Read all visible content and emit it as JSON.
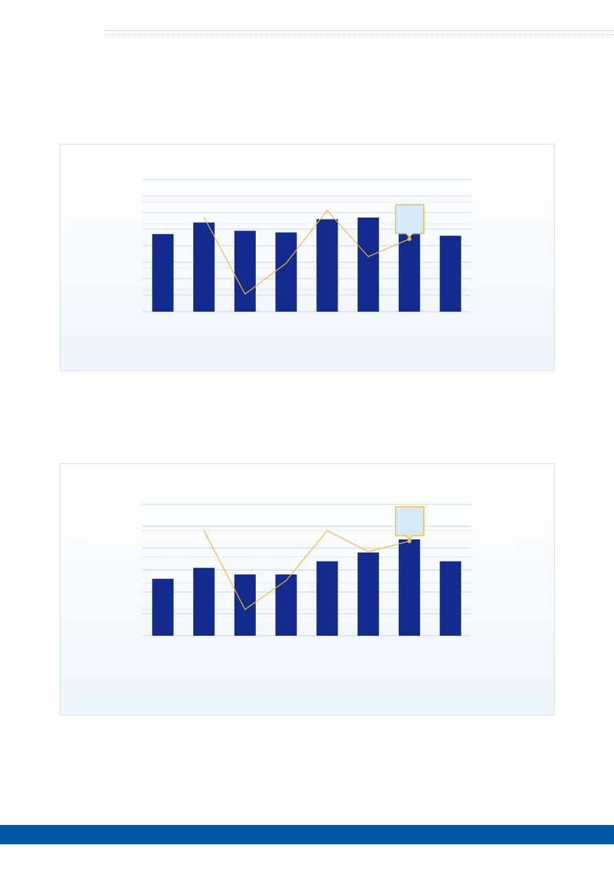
{
  "chart_data": [
    {
      "type": "bar-line",
      "categories": [
        null,
        null,
        null,
        null,
        null,
        null,
        null,
        null
      ],
      "series": [
        {
          "color": "#122b8c",
          "values": [
            4.7,
            5.4,
            4.9,
            4.8,
            5.6,
            5.7,
            4.7,
            4.6
          ]
        },
        {
          "color": "#f5b935",
          "axis": "y2",
          "values": [
            null,
            4.3,
            0.8,
            2.2,
            4.6,
            2.5,
            3.3,
            null
          ]
        }
      ],
      "ylim": [
        0,
        8
      ],
      "yticks": [
        0,
        1,
        2,
        3,
        4,
        5,
        6,
        7,
        8
      ],
      "y2lim": [
        0,
        6
      ],
      "y2ticks": [
        0,
        1,
        2,
        3,
        4,
        5,
        6
      ],
      "grid": true
    },
    {
      "type": "bar-line",
      "categories": [
        null,
        null,
        null,
        null,
        null,
        null,
        null,
        null
      ],
      "series": [
        {
          "color": "#122b8c",
          "values": [
            2.6,
            3.1,
            2.8,
            2.8,
            3.4,
            3.8,
            4.4,
            3.4
          ]
        },
        {
          "color": "#f5b935",
          "axis": "y2",
          "values": [
            null,
            4.0,
            1.0,
            2.1,
            4.0,
            3.2,
            3.6,
            null
          ]
        }
      ],
      "ylim": [
        0,
        6
      ],
      "yticks": [
        0,
        1,
        2,
        3,
        4,
        5,
        6
      ],
      "y2lim": [
        0,
        5
      ],
      "y2ticks": [
        0,
        1,
        2,
        3,
        4,
        5
      ],
      "grid": true
    }
  ]
}
